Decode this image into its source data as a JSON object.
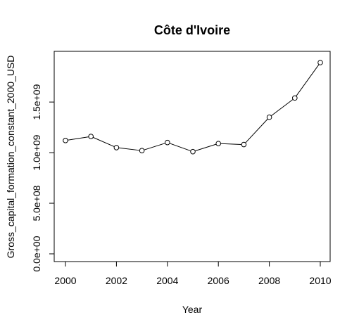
{
  "chart_data": {
    "type": "line",
    "title": "Côte d'Ivoire",
    "xlabel": "Year",
    "ylabel": "Gross_capital_formation_constant_2000_USD",
    "x": [
      2000,
      2001,
      2002,
      2003,
      2004,
      2005,
      2006,
      2007,
      2008,
      2009,
      2010
    ],
    "series": [
      {
        "values": [
          1120000000,
          1160000000,
          1050000000,
          1020000000,
          1100000000,
          1010000000,
          1090000000,
          1080000000,
          1350000000,
          1540000000,
          1890000000
        ]
      }
    ],
    "xlim": [
      2000,
      2010
    ],
    "ylim": [
      0,
      1890000000
    ],
    "x_ticks": [
      2000,
      2002,
      2004,
      2006,
      2008,
      2010
    ],
    "x_tick_labels": [
      "2000",
      "2002",
      "2004",
      "2006",
      "2008",
      "2010"
    ],
    "y_ticks": [
      0,
      500000000,
      1000000000,
      1500000000
    ],
    "y_tick_labels": [
      "0.0e+00",
      "5.0e+08",
      "1.0e+09",
      "1.5e+09"
    ],
    "marker": "open-circle",
    "line_color": "#000000",
    "grid": false,
    "legend": "none"
  }
}
